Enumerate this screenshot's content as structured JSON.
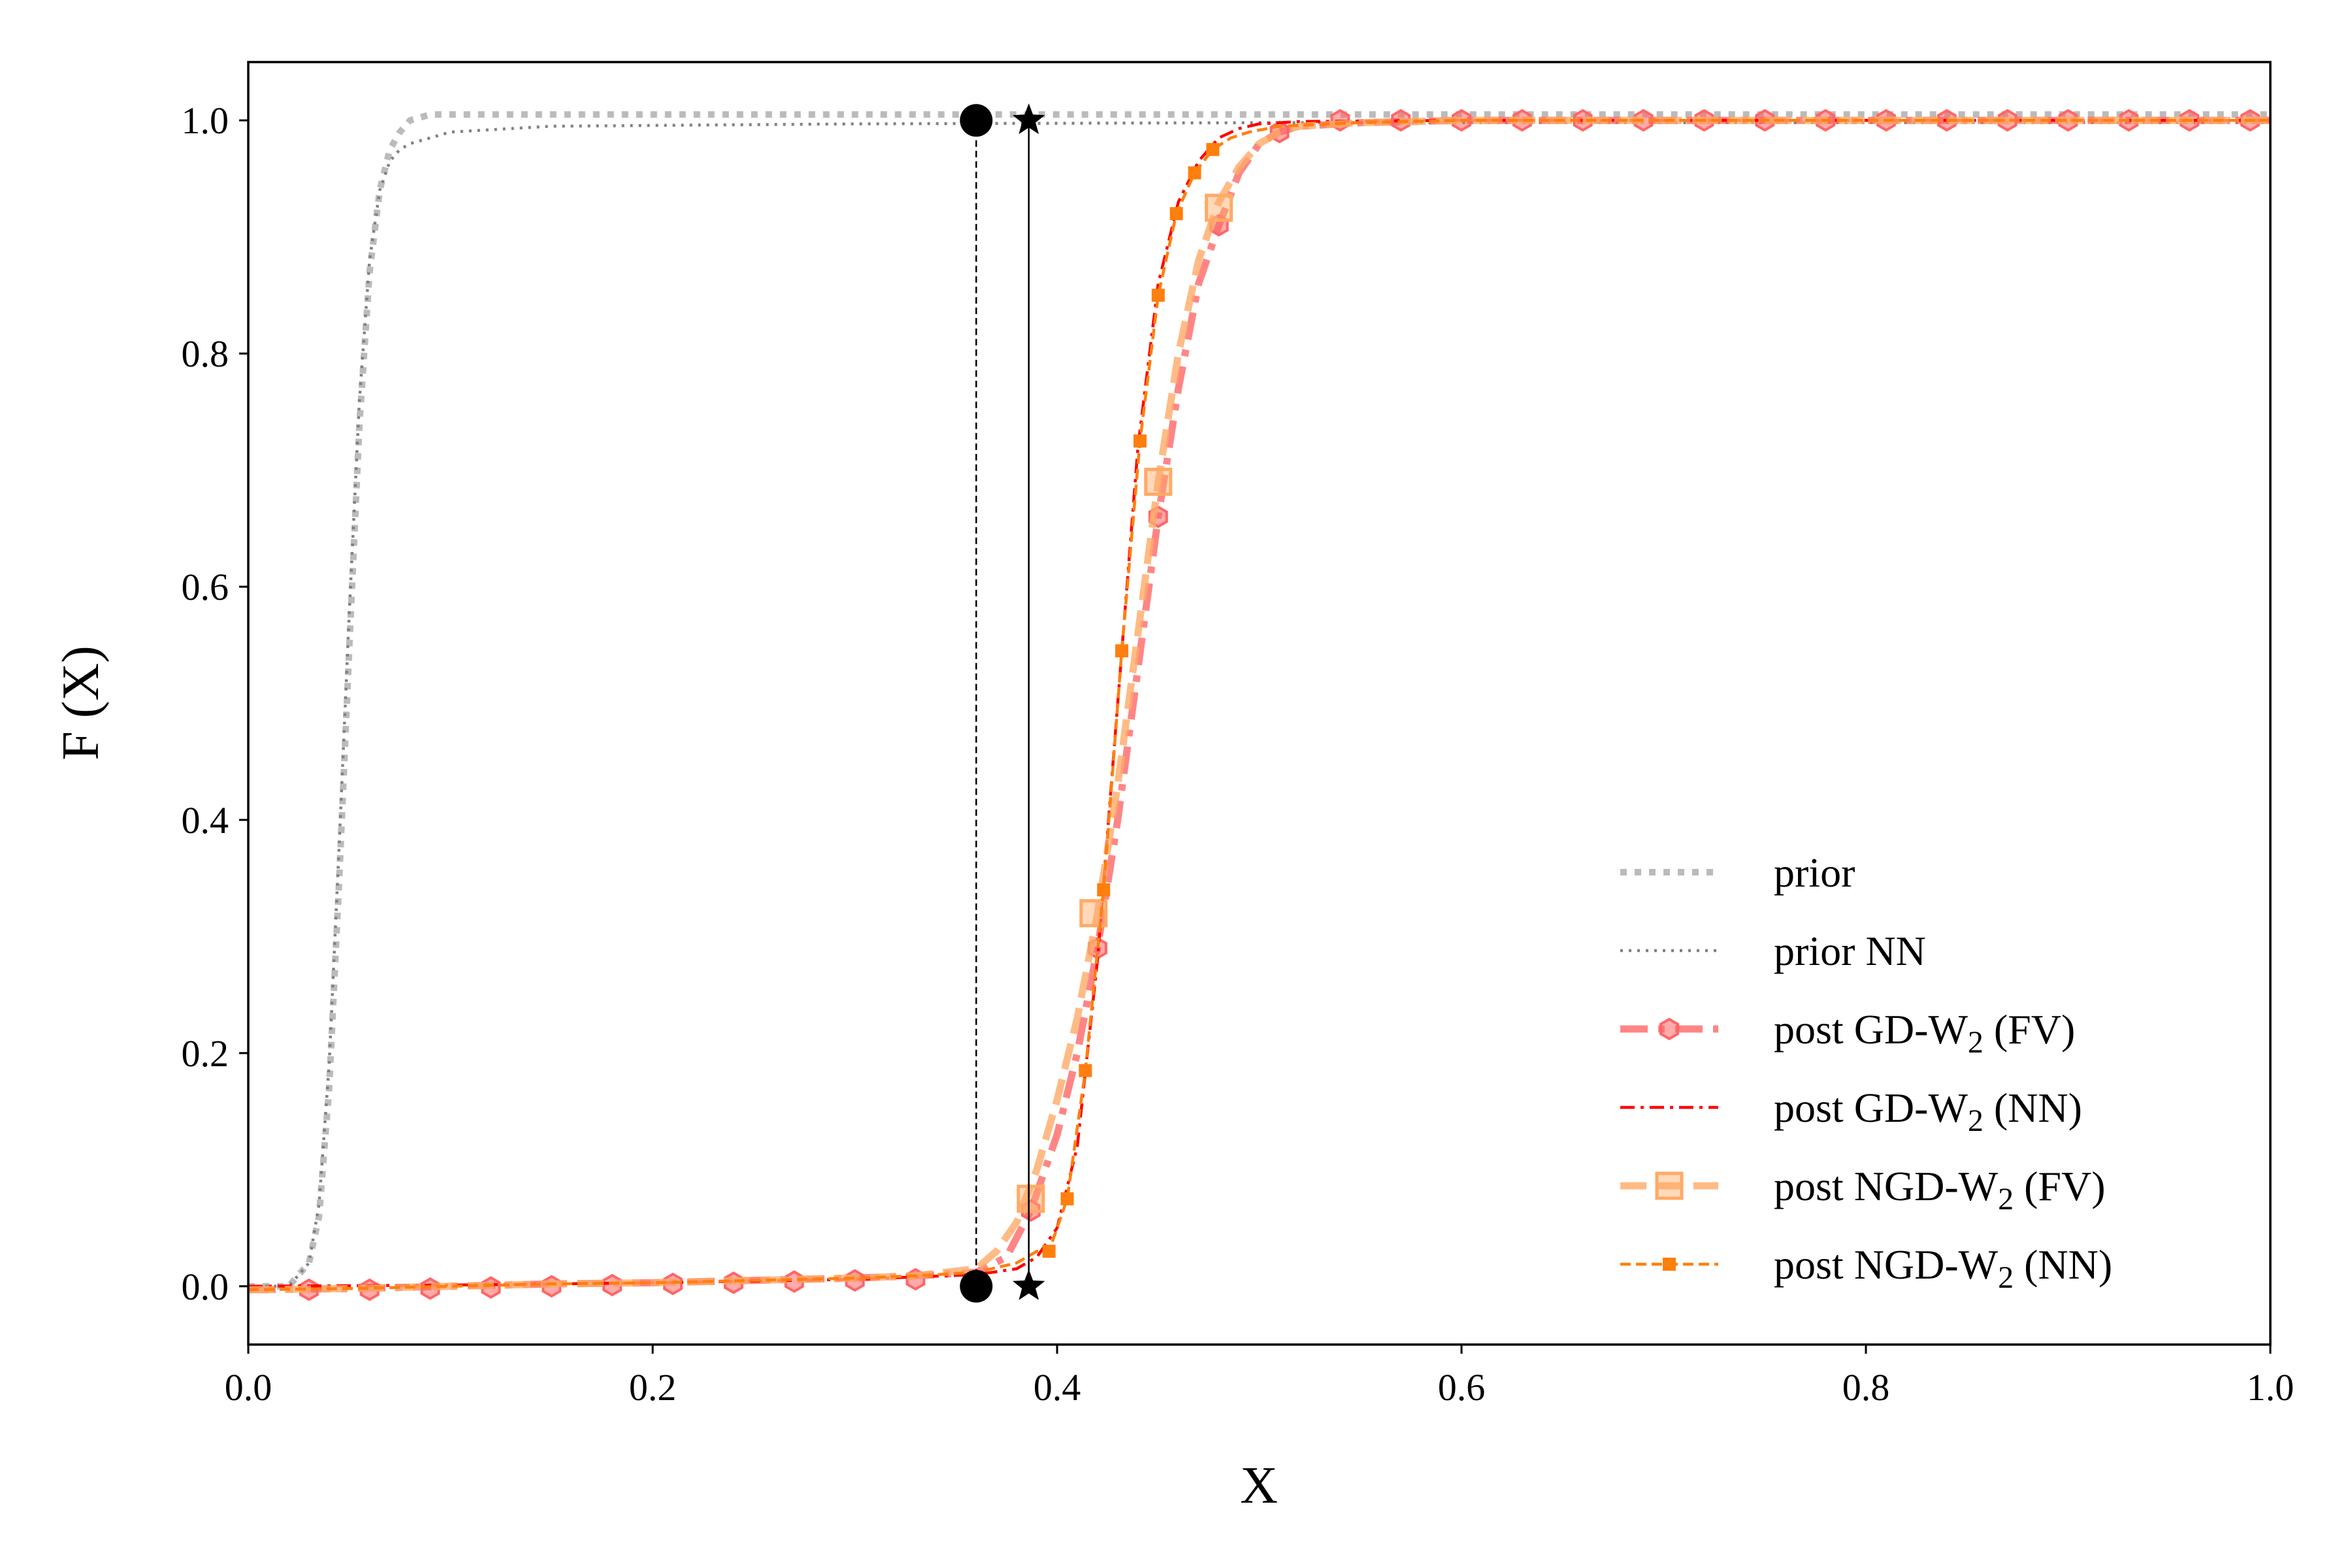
{
  "chart_data": {
    "type": "line",
    "title": "",
    "xlabel": "X",
    "ylabel": "F (X)",
    "xlim": [
      0.0,
      1.0
    ],
    "ylim": [
      -0.05,
      1.05
    ],
    "xticks": [
      "0.0",
      "0.2",
      "0.4",
      "0.6",
      "0.8",
      "1.0"
    ],
    "yticks": [
      "0.0",
      "0.2",
      "0.4",
      "0.6",
      "0.8",
      "1.0"
    ],
    "grid": false,
    "legend_position": "lower-right",
    "series": [
      {
        "name": "prior",
        "color": "#bbbbbb",
        "style": "dotted-thick",
        "marker": "none",
        "x": [
          0.0,
          0.02,
          0.03,
          0.035,
          0.04,
          0.045,
          0.05,
          0.055,
          0.06,
          0.065,
          0.07,
          0.075,
          0.08,
          0.09,
          0.1,
          0.15,
          0.3,
          0.5,
          0.7,
          0.9,
          1.0
        ],
        "y": [
          0.0,
          0.0,
          0.02,
          0.06,
          0.17,
          0.35,
          0.55,
          0.74,
          0.87,
          0.94,
          0.975,
          0.99,
          1.0,
          1.005,
          1.005,
          1.005,
          1.005,
          1.005,
          1.005,
          1.005,
          1.005
        ]
      },
      {
        "name": "prior NN",
        "color": "#808080",
        "style": "dotted-thin",
        "marker": "none",
        "x": [
          0.0,
          0.02,
          0.03,
          0.035,
          0.04,
          0.045,
          0.05,
          0.055,
          0.06,
          0.065,
          0.07,
          0.075,
          0.08,
          0.09,
          0.1,
          0.15,
          0.3,
          0.5,
          0.7,
          0.9,
          1.0
        ],
        "y": [
          0.0,
          0.0,
          0.02,
          0.07,
          0.19,
          0.38,
          0.58,
          0.76,
          0.88,
          0.94,
          0.965,
          0.975,
          0.98,
          0.985,
          0.99,
          0.995,
          0.997,
          0.998,
          0.998,
          0.998,
          0.998
        ]
      },
      {
        "name": "post GD-W2 (FV)",
        "color": "#ff6666",
        "style": "dash-dot-thick",
        "marker": "hexagon",
        "x": [
          0.0,
          0.05,
          0.1,
          0.15,
          0.2,
          0.25,
          0.3,
          0.33,
          0.36,
          0.375,
          0.387,
          0.4,
          0.41,
          0.42,
          0.43,
          0.44,
          0.45,
          0.46,
          0.47,
          0.48,
          0.49,
          0.5,
          0.51,
          0.52,
          0.55,
          0.6,
          0.7,
          0.8,
          0.9,
          1.0
        ],
        "y": [
          -0.003,
          -0.002,
          0.0,
          0.002,
          0.003,
          0.005,
          0.007,
          0.009,
          0.012,
          0.025,
          0.065,
          0.13,
          0.2,
          0.29,
          0.4,
          0.53,
          0.66,
          0.77,
          0.86,
          0.91,
          0.955,
          0.98,
          0.99,
          0.995,
          0.998,
          1.0,
          1.0,
          1.0,
          1.0,
          1.0
        ],
        "marker_x": [
          0.03,
          0.06,
          0.09,
          0.12,
          0.15,
          0.18,
          0.21,
          0.24,
          0.27,
          0.3,
          0.33,
          0.387,
          0.42,
          0.45,
          0.48,
          0.51,
          0.54,
          0.57,
          0.6,
          0.63,
          0.66,
          0.69,
          0.72,
          0.75,
          0.78,
          0.81,
          0.84,
          0.87,
          0.9,
          0.93,
          0.96,
          0.99
        ],
        "marker_y": [
          -0.003,
          -0.003,
          -0.002,
          -0.001,
          0.0,
          0.001,
          0.002,
          0.003,
          0.004,
          0.005,
          0.006,
          0.065,
          0.29,
          0.66,
          0.91,
          0.99,
          1.0,
          1.0,
          1.0,
          1.0,
          1.0,
          1.0,
          1.0,
          1.0,
          1.0,
          1.0,
          1.0,
          1.0,
          1.0,
          1.0,
          1.0,
          1.0
        ]
      },
      {
        "name": "post GD-W2 (NN)",
        "color": "#ff0000",
        "style": "dash-dot-thin",
        "marker": "none",
        "x": [
          0.0,
          0.1,
          0.2,
          0.3,
          0.36,
          0.38,
          0.39,
          0.4,
          0.41,
          0.42,
          0.43,
          0.44,
          0.45,
          0.46,
          0.47,
          0.48,
          0.49,
          0.5,
          0.52,
          0.6,
          0.8,
          1.0
        ],
        "y": [
          0.0,
          0.001,
          0.003,
          0.006,
          0.01,
          0.015,
          0.025,
          0.05,
          0.12,
          0.28,
          0.5,
          0.72,
          0.86,
          0.93,
          0.965,
          0.985,
          0.993,
          0.997,
          0.999,
          1.0,
          1.0,
          1.0
        ]
      },
      {
        "name": "post NGD-W2 (FV)",
        "color": "#ffaa66",
        "style": "dashed-thick",
        "marker": "square",
        "x": [
          0.0,
          0.05,
          0.1,
          0.15,
          0.2,
          0.25,
          0.3,
          0.33,
          0.36,
          0.37,
          0.38,
          0.39,
          0.4,
          0.41,
          0.42,
          0.43,
          0.44,
          0.45,
          0.46,
          0.47,
          0.48,
          0.49,
          0.5,
          0.51,
          0.52,
          0.55,
          0.6,
          0.7,
          0.8,
          0.9,
          1.0
        ],
        "y": [
          -0.003,
          -0.002,
          0.0,
          0.002,
          0.003,
          0.005,
          0.007,
          0.009,
          0.015,
          0.03,
          0.055,
          0.1,
          0.16,
          0.23,
          0.32,
          0.43,
          0.56,
          0.69,
          0.8,
          0.88,
          0.93,
          0.96,
          0.98,
          0.99,
          0.995,
          0.998,
          1.0,
          1.0,
          1.0,
          1.0,
          1.0
        ],
        "marker_x": [
          0.387,
          0.418,
          0.45,
          0.48
        ],
        "marker_y": [
          0.075,
          0.32,
          0.69,
          0.925
        ]
      },
      {
        "name": "post NGD-W2 (NN)",
        "color": "#ff7f0e",
        "style": "dashed-thin",
        "marker": "square-small",
        "x": [
          0.0,
          0.05,
          0.1,
          0.15,
          0.2,
          0.25,
          0.3,
          0.33,
          0.36,
          0.38,
          0.39,
          0.396,
          0.405,
          0.414,
          0.423,
          0.432,
          0.441,
          0.45,
          0.459,
          0.468,
          0.477,
          0.486,
          0.495,
          0.51,
          0.55,
          0.6,
          0.7,
          0.8,
          0.9,
          1.0
        ],
        "y": [
          -0.003,
          -0.002,
          0.0,
          0.002,
          0.003,
          0.005,
          0.007,
          0.009,
          0.012,
          0.02,
          0.03,
          0.03,
          0.075,
          0.185,
          0.34,
          0.545,
          0.725,
          0.85,
          0.92,
          0.955,
          0.975,
          0.985,
          0.99,
          0.995,
          0.998,
          1.0,
          1.0,
          1.0,
          1.0,
          1.0
        ],
        "marker_x": [
          0.396,
          0.405,
          0.414,
          0.423,
          0.432,
          0.441,
          0.45,
          0.459,
          0.468,
          0.477
        ],
        "marker_y": [
          0.03,
          0.075,
          0.185,
          0.34,
          0.545,
          0.725,
          0.85,
          0.92,
          0.955,
          0.975
        ]
      }
    ],
    "reference_lines": [
      {
        "name": "reference-circle-line",
        "x": 0.36,
        "y_from": 0.0,
        "y_to": 1.0,
        "style": "dashed",
        "marker": "circle",
        "color": "#000000"
      },
      {
        "name": "reference-star-line",
        "x": 0.386,
        "y_from": 0.0,
        "y_to": 1.0,
        "style": "solid",
        "marker": "star",
        "color": "#000000"
      }
    ]
  },
  "legend": {
    "entries": [
      {
        "label": "prior"
      },
      {
        "label": "prior NN"
      },
      {
        "label_prefix": "post GD-W",
        "subscript": "2",
        "label_suffix": " (FV)"
      },
      {
        "label_prefix": "post GD-W",
        "subscript": "2",
        "label_suffix": " (NN)"
      },
      {
        "label_prefix": "post NGD-W",
        "subscript": "2",
        "label_suffix": " (FV)"
      },
      {
        "label_prefix": "post NGD-W",
        "subscript": "2",
        "label_suffix": " (NN)"
      }
    ]
  }
}
